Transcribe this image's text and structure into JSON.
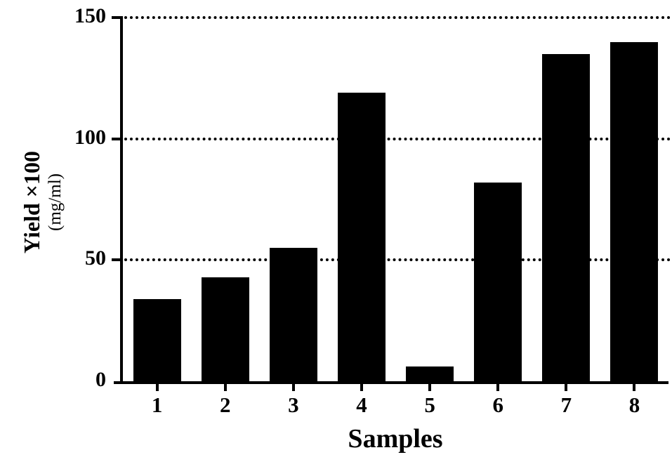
{
  "figure": {
    "background_color": "#ffffff",
    "axis_color": "#000000",
    "bar_color": "#000000",
    "gridline_style": "dotted"
  },
  "chart_data": {
    "type": "bar",
    "title": "",
    "categories": [
      "1",
      "2",
      "3",
      "4",
      "5",
      "6",
      "7",
      "8"
    ],
    "values": [
      34,
      43,
      55,
      119,
      6,
      82,
      135,
      140
    ],
    "xlabel": "Samples",
    "ylabel_line1": "Yield ×100",
    "ylabel_line2": "(mg/ml)",
    "ylim": [
      0,
      150
    ],
    "yticks": [
      0,
      50,
      100,
      150
    ],
    "grid": "horizontal dotted lines at 50, 100, 150",
    "legend": "none",
    "bar_color": "#000000"
  }
}
